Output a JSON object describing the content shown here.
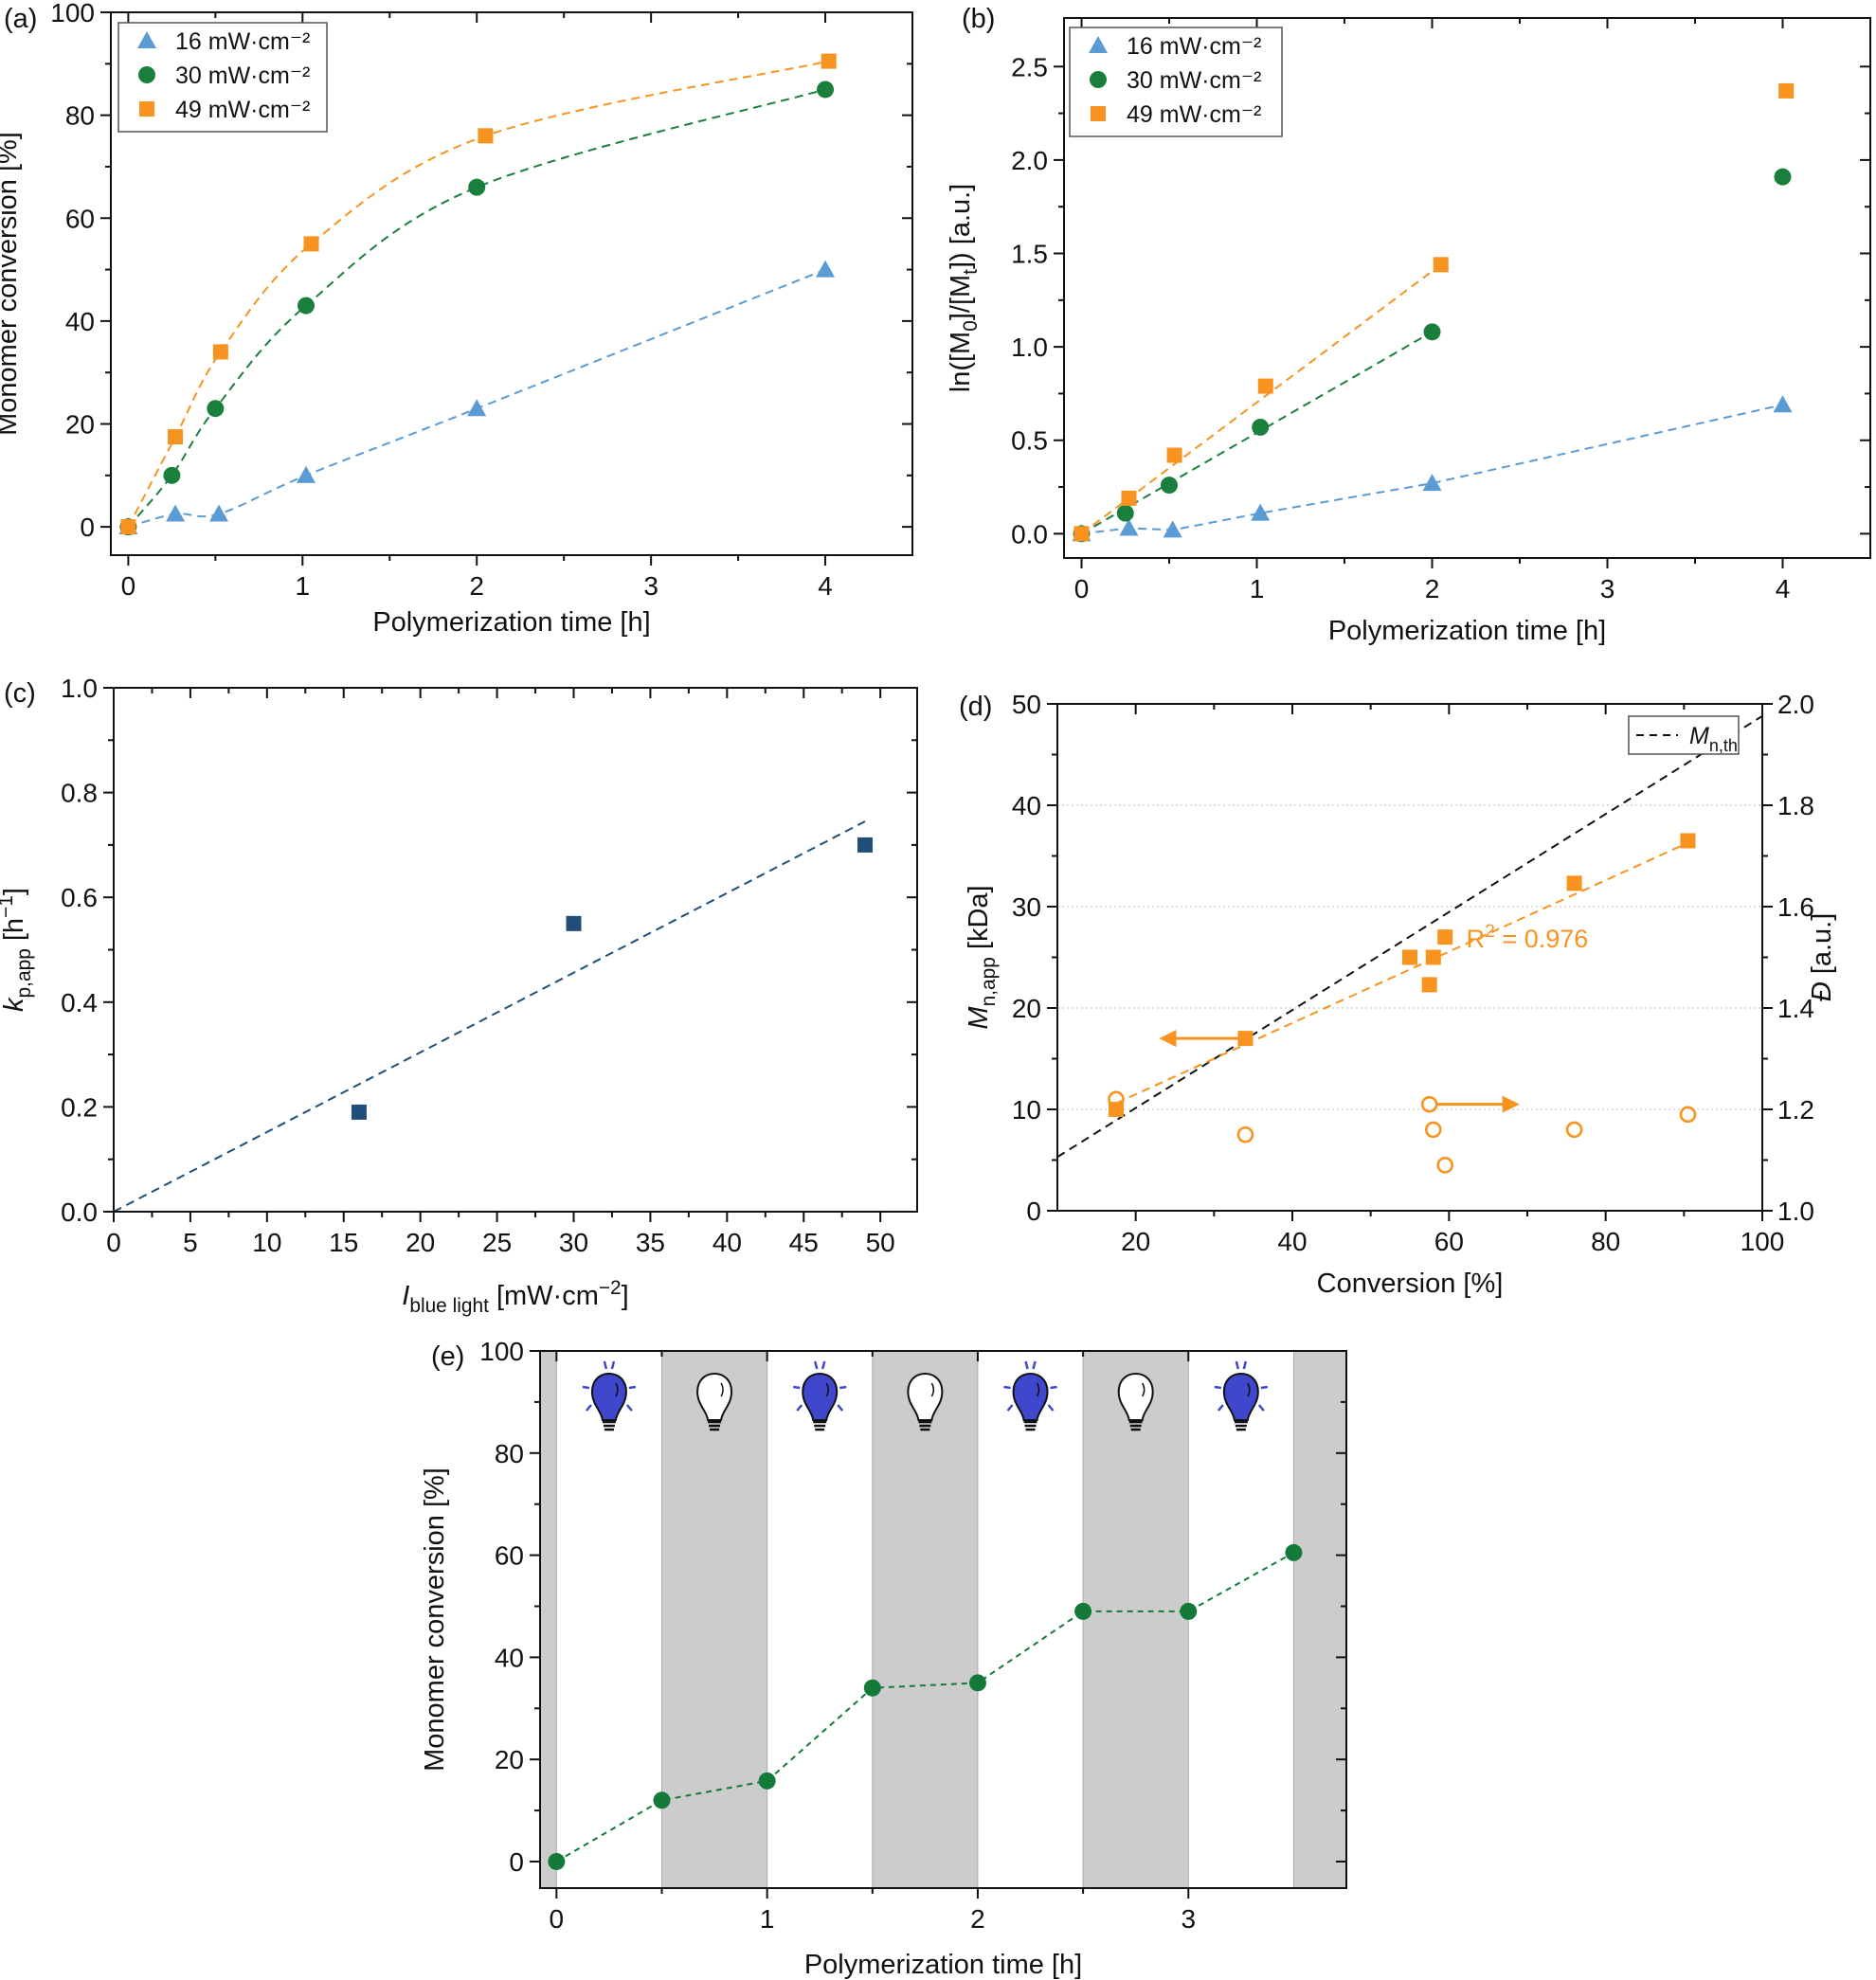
{
  "chart_data": [
    {
      "panel": "(a)",
      "type": "scatter",
      "xlabel": "Polymerization time [h]",
      "ylabel": "Monomer conversion [%]",
      "xlim": [
        -0.1,
        4.5
      ],
      "ylim": [
        -5.5,
        100
      ],
      "xticks": [
        0,
        1,
        2,
        3,
        4
      ],
      "xtick_labels": [
        "0",
        "1",
        "2",
        "3",
        "4"
      ],
      "yticks": [
        0,
        20,
        40,
        60,
        80,
        100
      ],
      "ytick_labels": [
        "0",
        "20",
        "40",
        "60",
        "80",
        "100"
      ],
      "legend": "top-left",
      "fit_lines": "dashed",
      "series": [
        {
          "name": "16 mW·cm⁻²",
          "marker": "triangle",
          "color": "#5b9bd5",
          "fit": "smooth",
          "x": [
            0,
            0.27,
            0.52,
            1.02,
            2,
            4
          ],
          "y": [
            0,
            2.5,
            2.5,
            10,
            23,
            50
          ]
        },
        {
          "name": "30 mW·cm⁻²",
          "marker": "circle",
          "color": "#1a7f3c",
          "fit": "smooth",
          "x": [
            0,
            0.25,
            0.5,
            1.02,
            2,
            4
          ],
          "y": [
            0,
            10,
            23,
            43,
            66,
            85
          ]
        },
        {
          "name": "49 mW·cm⁻²",
          "marker": "square",
          "color": "#f7931e",
          "fit": "smooth",
          "x": [
            0,
            0.27,
            0.53,
            1.05,
            2.05,
            4.02
          ],
          "y": [
            0,
            17.5,
            34,
            55,
            76,
            90.5
          ]
        }
      ]
    },
    {
      "panel": "(b)",
      "type": "scatter",
      "xlabel": "Polymerization time [h]",
      "ylabel": "ln([M_{0}]/[M_{t}]) [a.u.]",
      "xlim": [
        -0.1,
        4.5
      ],
      "ylim": [
        -0.13,
        2.76
      ],
      "xticks": [
        0,
        1,
        2,
        3,
        4
      ],
      "xtick_labels": [
        "0",
        "1",
        "2",
        "3",
        "4"
      ],
      "yticks": [
        0,
        0.5,
        1,
        1.5,
        2,
        2.5
      ],
      "ytick_labels": [
        "0.0",
        "0.5",
        "1.0",
        "1.5",
        "2.0",
        "2.5"
      ],
      "legend": "top-left",
      "fit_lines": "dashed",
      "series": [
        {
          "name": "16 mW·cm⁻²",
          "marker": "triangle",
          "color": "#5b9bd5",
          "fit": "through-all",
          "x": [
            0,
            0.27,
            0.52,
            1.02,
            2,
            4
          ],
          "y": [
            0,
            0.03,
            0.02,
            0.11,
            0.27,
            0.69
          ]
        },
        {
          "name": "30 mW·cm⁻²",
          "marker": "circle",
          "color": "#1a7f3c",
          "fit": "linear-to-2h",
          "x": [
            0,
            0.25,
            0.5,
            1.02,
            2,
            4
          ],
          "y": [
            0,
            0.11,
            0.26,
            0.57,
            1.08,
            1.91
          ]
        },
        {
          "name": "49 mW·cm⁻²",
          "marker": "square",
          "color": "#f7931e",
          "fit": "linear-to-2h",
          "x": [
            0,
            0.27,
            0.53,
            1.05,
            2.05,
            4.02
          ],
          "y": [
            0,
            0.19,
            0.42,
            0.79,
            1.44,
            2.37
          ]
        }
      ]
    },
    {
      "panel": "(c)",
      "type": "scatter",
      "xlabel": "*I*_{blue light} [mW·cm^{−2}]",
      "ylabel": "*k*_{p,app} [h^{−1}]",
      "xlim": [
        0,
        52.4
      ],
      "ylim": [
        0,
        1
      ],
      "xticks": [
        0,
        5,
        10,
        15,
        20,
        25,
        30,
        35,
        40,
        45,
        50
      ],
      "xtick_labels": [
        "0",
        "5",
        "10",
        "15",
        "20",
        "25",
        "30",
        "35",
        "40",
        "45",
        "50"
      ],
      "yticks": [
        0,
        0.2,
        0.4,
        0.6,
        0.8,
        1
      ],
      "ytick_labels": [
        "0.0",
        "0.2",
        "0.4",
        "0.6",
        "0.8",
        "1.0"
      ],
      "series": [
        {
          "marker": "square",
          "color": "#1f4e79",
          "x": [
            16,
            30,
            49
          ],
          "y": [
            0.19,
            0.55,
            0.7
          ]
        }
      ],
      "lines": [
        {
          "x": [
            0,
            49
          ],
          "y": [
            0,
            0.745
          ],
          "color": "#1f4e79",
          "style": "dashed"
        }
      ]
    },
    {
      "panel": "(d)",
      "type": "scatter",
      "xlabel": "Conversion [%]",
      "ylabel": "*M*_{n,app} [kDa]",
      "y2label": "*Đ* [a.u.]",
      "xlim": [
        10,
        100
      ],
      "ylim": [
        0,
        50
      ],
      "y2lim": [
        1.0,
        2.0
      ],
      "xticks": [
        20,
        40,
        60,
        80,
        100
      ],
      "xtick_labels": [
        "20",
        "40",
        "60",
        "80",
        "100"
      ],
      "yticks": [
        0,
        10,
        20,
        30,
        40,
        50
      ],
      "ytick_labels": [
        "0",
        "10",
        "20",
        "30",
        "40",
        "50"
      ],
      "y2ticks": [
        1.0,
        1.2,
        1.4,
        1.6,
        1.8,
        2.0
      ],
      "y2tick_labels": [
        "1.0",
        "1.2",
        "1.4",
        "1.6",
        "1.8",
        "2.0"
      ],
      "grid": "horizontal dotted",
      "legend": "top-right",
      "legend_entries": [
        "*M*_{n,th}"
      ],
      "series": [
        {
          "axis": "left",
          "marker": "square",
          "color": "#f7931e",
          "x": [
            17.5,
            34,
            55,
            57.5,
            58,
            59.5,
            76,
            90.5
          ],
          "y": [
            10,
            17,
            25,
            22.3,
            25,
            27,
            32.3,
            36.5
          ]
        },
        {
          "axis": "right",
          "marker": "open-circle",
          "color": "#f7931e",
          "x": [
            17.5,
            34,
            57.5,
            58,
            59.5,
            76,
            90.5
          ],
          "y": [
            1.22,
            1.15,
            1.21,
            1.16,
            1.09,
            1.16,
            1.19
          ]
        }
      ],
      "lines": [
        {
          "name": "M_n,th",
          "x": [
            10,
            100
          ],
          "y": [
            5.3,
            48.8
          ],
          "color": "#111111",
          "style": "dashed"
        },
        {
          "x": [
            17.5,
            90.5
          ],
          "y": [
            10.6,
            36.3
          ],
          "color": "#f7931e",
          "style": "dashed"
        }
      ],
      "annotations": [
        {
          "text": "R^{2} = 0.976",
          "x": 70,
          "y": 26,
          "color": "#f7931e"
        }
      ],
      "arrows": [
        {
          "points_to": "left axis",
          "x": [
            34,
            23
          ],
          "y": [
            17,
            17
          ],
          "color": "#f7931e"
        },
        {
          "points_to": "right axis",
          "x": [
            58.5,
            69
          ],
          "y": [
            10.5,
            10.5
          ],
          "color": "#f7931e"
        }
      ]
    },
    {
      "panel": "(e)",
      "type": "line",
      "xlabel": "Polymerization time [h]",
      "ylabel": "Monomer conversion [%]",
      "xlim": [
        -0.078,
        3.75
      ],
      "ylim": [
        -5.2,
        100
      ],
      "xticks": [
        0,
        1,
        2,
        3
      ],
      "xtick_labels": [
        "0",
        "1",
        "2",
        "3"
      ],
      "yticks": [
        0,
        20,
        40,
        60,
        80,
        100
      ],
      "ytick_labels": [
        "0",
        "20",
        "40",
        "60",
        "80",
        "100"
      ],
      "light_periods": [
        {
          "start": -0.078,
          "end": 0,
          "state": "off"
        },
        {
          "start": 0,
          "end": 0.5,
          "state": "on"
        },
        {
          "start": 0.5,
          "end": 1,
          "state": "off"
        },
        {
          "start": 1,
          "end": 1.5,
          "state": "on"
        },
        {
          "start": 1.5,
          "end": 2,
          "state": "off"
        },
        {
          "start": 2,
          "end": 2.5,
          "state": "on"
        },
        {
          "start": 2.5,
          "end": 3,
          "state": "off"
        },
        {
          "start": 3,
          "end": 3.5,
          "state": "on"
        },
        {
          "start": 3.5,
          "end": 3.75,
          "state": "off"
        }
      ],
      "colors": {
        "off_band": "#cccccc",
        "bulb_on": "#3f48cc"
      },
      "series": [
        {
          "marker": "circle",
          "color": "#137a3a",
          "line": "dashed",
          "x": [
            0,
            0.5,
            1,
            1.5,
            2,
            2.5,
            3,
            3.5
          ],
          "y": [
            0,
            12,
            15.8,
            34,
            35,
            49,
            49,
            60.5
          ]
        }
      ]
    }
  ]
}
